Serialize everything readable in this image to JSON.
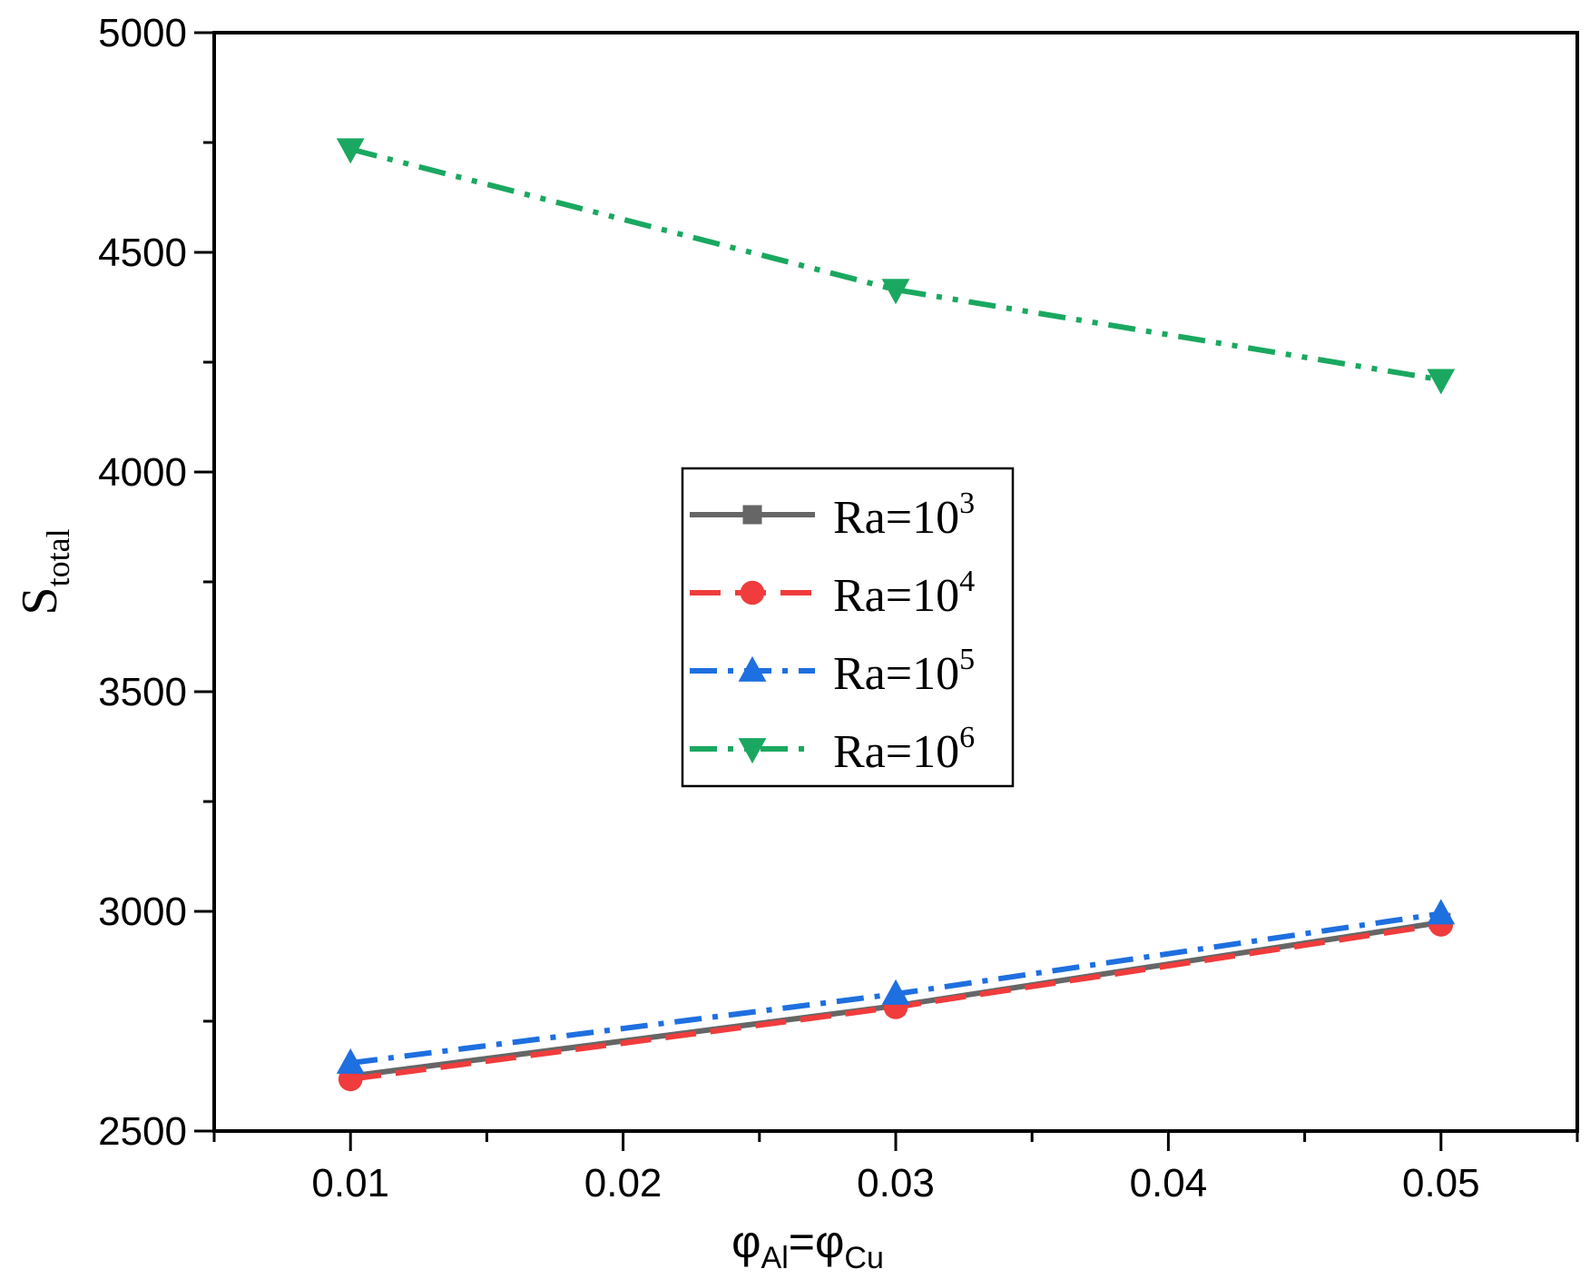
{
  "chart_data": {
    "type": "line",
    "x": [
      0.01,
      0.03,
      0.05
    ],
    "xlim": [
      0.005,
      0.055
    ],
    "ylim": [
      2500,
      5000
    ],
    "xticks": [
      0.01,
      0.02,
      0.03,
      0.04,
      0.05
    ],
    "xtick_labels": [
      "0.01",
      "0.02",
      "0.03",
      "0.04",
      "0.05"
    ],
    "yticks": [
      2500,
      3000,
      3500,
      4000,
      4500,
      5000
    ],
    "ytick_labels": [
      "2500",
      "3000",
      "3500",
      "4000",
      "4500",
      "5000"
    ],
    "xlabel": {
      "sym1": "φ",
      "sub1": "Al",
      "eq": "=",
      "sym2": "φ",
      "sub2": "Cu"
    },
    "ylabel": {
      "main": "S",
      "sub": "total"
    },
    "legend_position": "center",
    "series": [
      {
        "name": "Ra=10^3",
        "label_base": "Ra=10",
        "label_exp": "3",
        "color": "#666666",
        "marker": "square",
        "dash": "solid",
        "values": [
          2625,
          2785,
          2975
        ]
      },
      {
        "name": "Ra=10^4",
        "label_base": "Ra=10",
        "label_exp": "4",
        "color": "#f03c3c",
        "marker": "circle",
        "dash": "dash",
        "values": [
          2618,
          2782,
          2970
        ]
      },
      {
        "name": "Ra=10^5",
        "label_base": "Ra=10",
        "label_exp": "5",
        "color": "#1e6fe0",
        "marker": "triangle-up",
        "dash": "dashdot",
        "values": [
          2655,
          2812,
          2995
        ]
      },
      {
        "name": "Ra=10^6",
        "label_base": "Ra=10",
        "label_exp": "6",
        "color": "#1aa860",
        "marker": "triangle-down",
        "dash": "dashdotdot",
        "values": [
          4735,
          4415,
          4210
        ]
      }
    ]
  }
}
